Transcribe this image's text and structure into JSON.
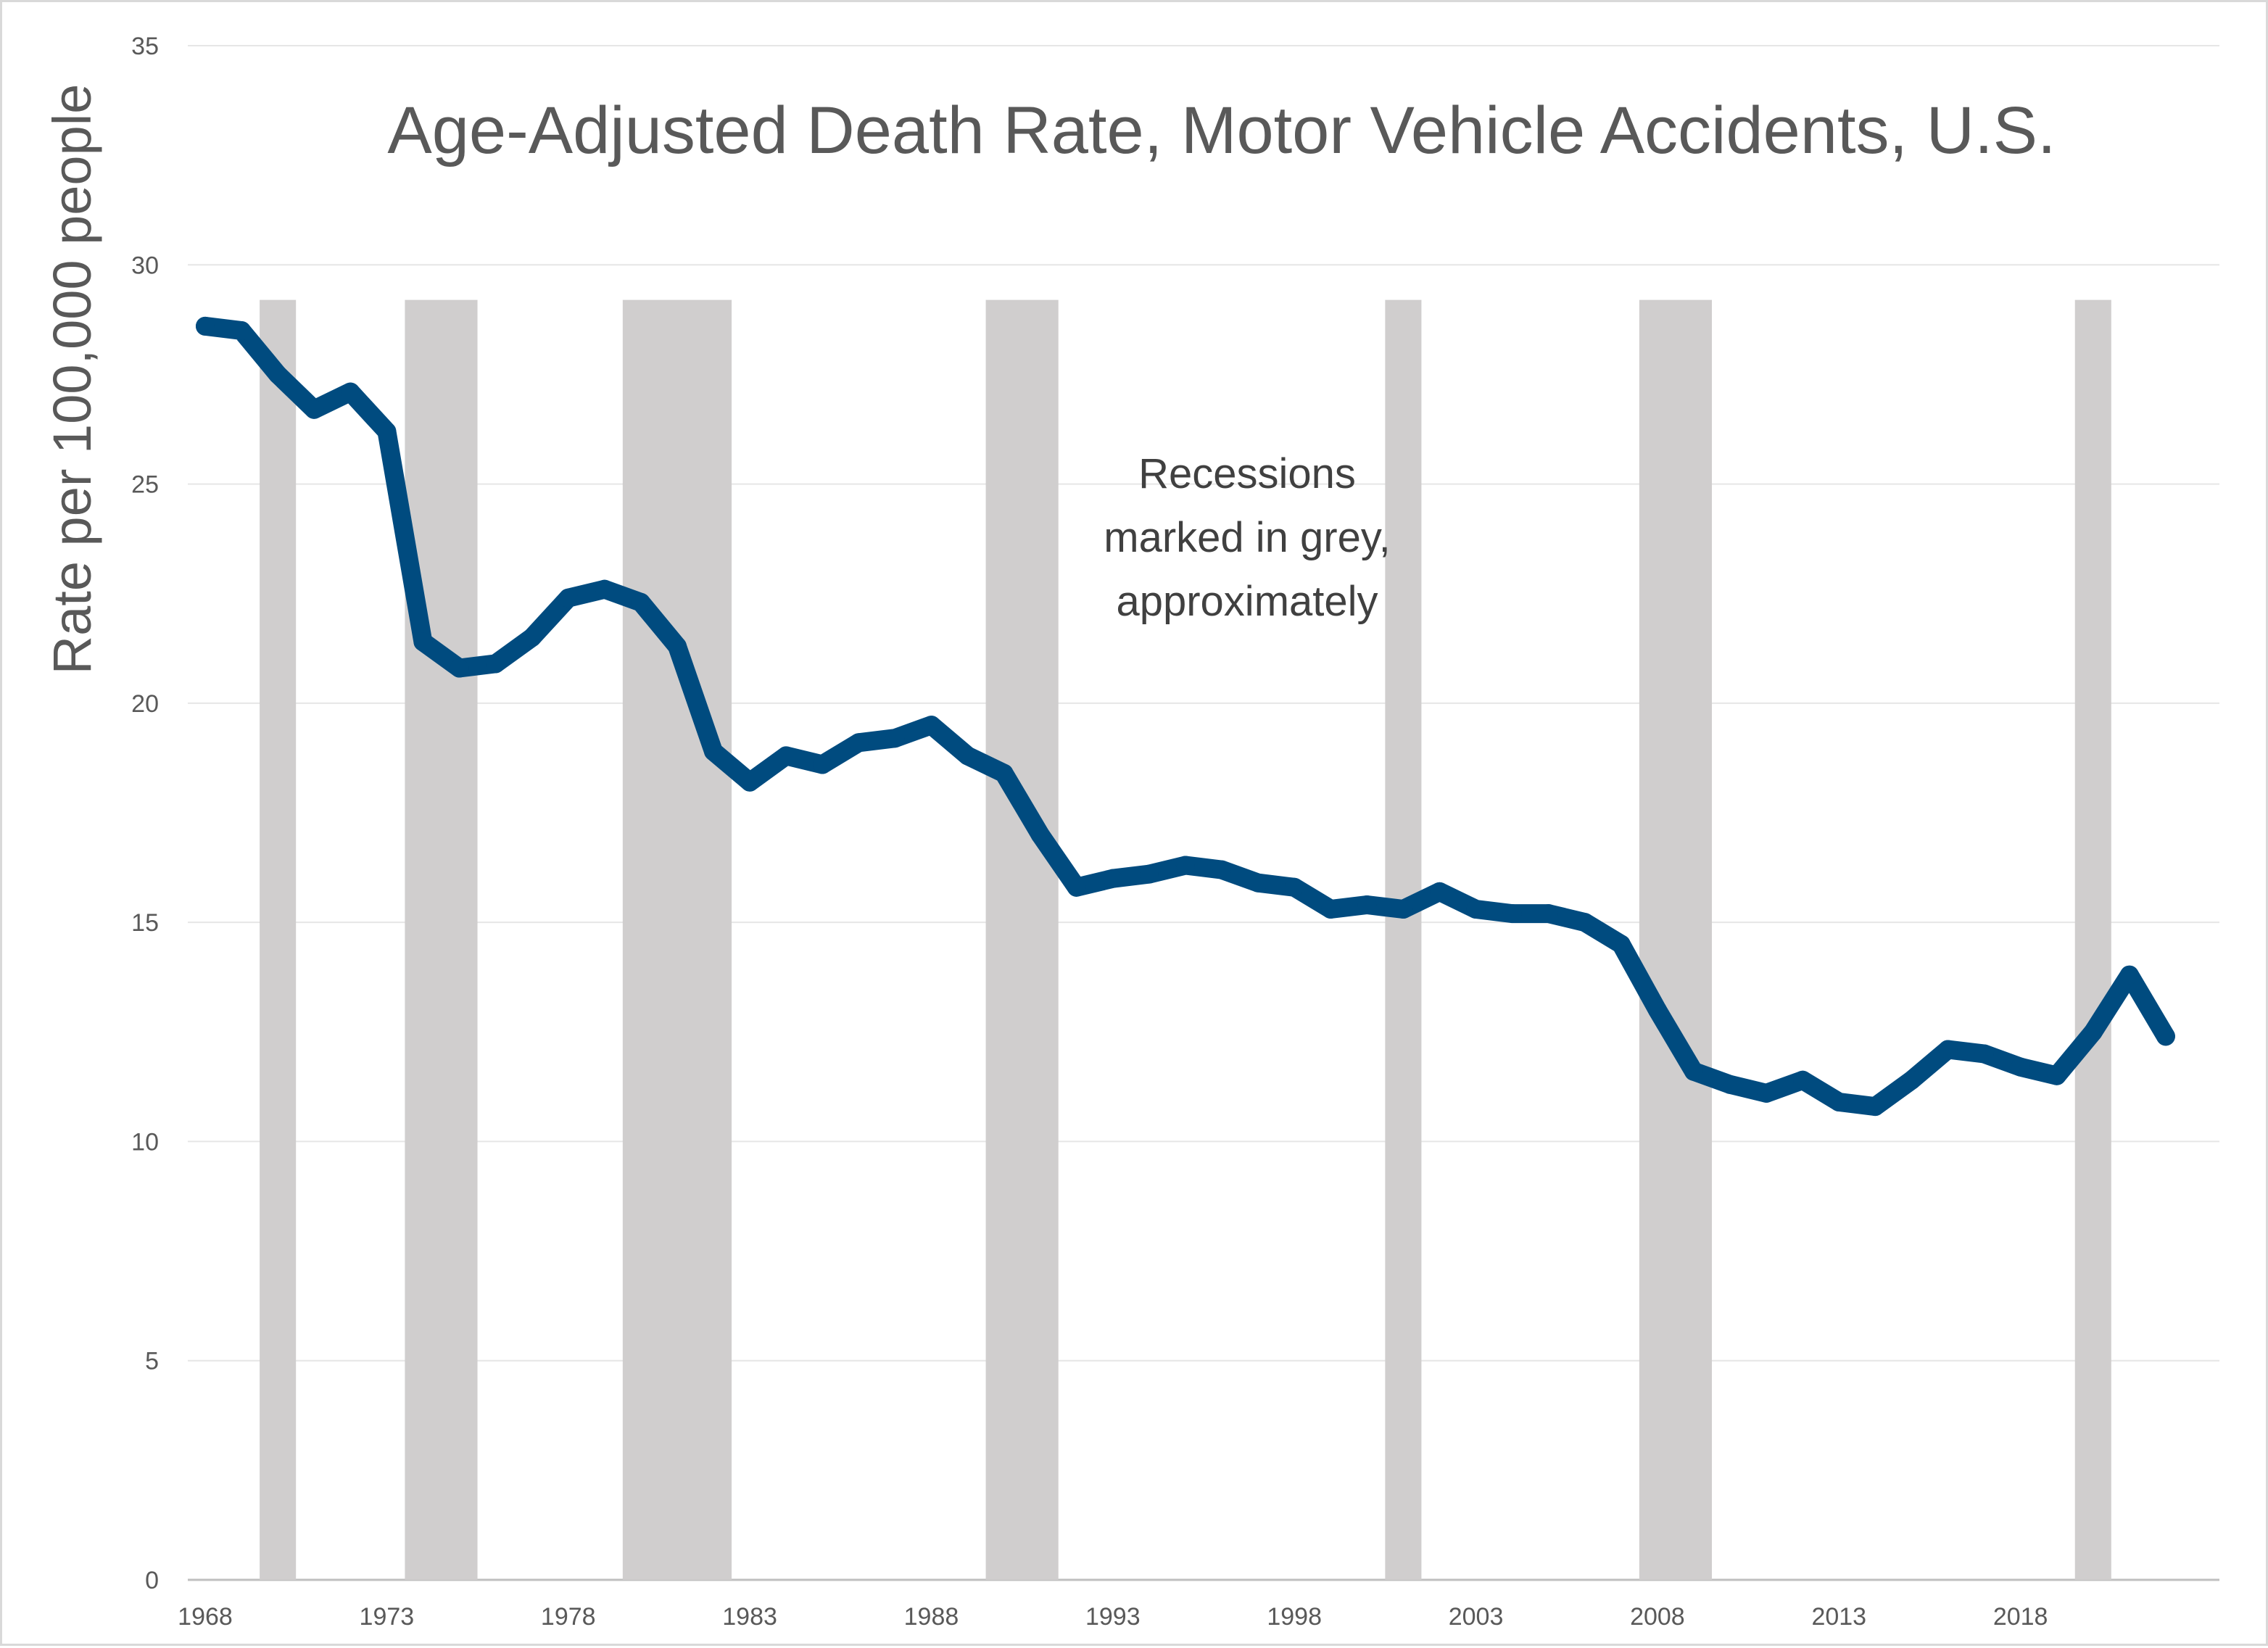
{
  "chart_data": {
    "type": "line",
    "title": "Age-Adjusted Death Rate, Motor Vehicle Accidents, U.S.",
    "xlabel": "",
    "ylabel": "Rate per 100,000 people",
    "annotation": [
      "Recessions",
      "marked in grey,",
      "approximately"
    ],
    "ylim": [
      0,
      35
    ],
    "xlim": [
      1968,
      2023
    ],
    "grid": "horizontal",
    "colors": {
      "line": "#004b7f",
      "recession": "#d0cece",
      "grid": "#e6e6e6",
      "text": "#595959"
    },
    "x_ticks": [
      1968,
      1973,
      1978,
      1983,
      1988,
      1993,
      1998,
      2003,
      2008,
      2013,
      2018
    ],
    "y_ticks": [
      0,
      5,
      10,
      15,
      20,
      25,
      30,
      35
    ],
    "recessions": [
      [
        1969.5,
        1970.5
      ],
      [
        1973.5,
        1975.5
      ],
      [
        1979.5,
        1982.5
      ],
      [
        1989.5,
        1991.5
      ],
      [
        2000.5,
        2001.5
      ],
      [
        2007.5,
        2009.5
      ],
      [
        2019.5,
        2020.5
      ]
    ],
    "recession_top": 29.2,
    "series": [
      {
        "x": [
          1968,
          1969,
          1970,
          1971,
          1972,
          1973,
          1974,
          1975,
          1976,
          1977,
          1978,
          1979,
          1980,
          1981,
          1982,
          1983,
          1984,
          1985,
          1986,
          1987,
          1988,
          1989,
          1990,
          1991,
          1992,
          1993,
          1994,
          1995,
          1996,
          1997,
          1998,
          1999,
          2000,
          2001,
          2002,
          2003,
          2004,
          2005,
          2006,
          2007,
          2008,
          2009,
          2010,
          2011,
          2012,
          2013,
          2014,
          2015,
          2016,
          2017,
          2018,
          2019,
          2020,
          2021,
          2022
        ],
        "values": [
          28.6,
          28.5,
          27.5,
          26.7,
          27.1,
          26.2,
          21.4,
          20.8,
          20.9,
          21.5,
          22.4,
          22.6,
          22.3,
          21.3,
          18.9,
          18.2,
          18.8,
          18.6,
          19.1,
          19.2,
          19.5,
          18.8,
          18.4,
          17.0,
          15.8,
          16.0,
          16.1,
          16.3,
          16.2,
          15.9,
          15.8,
          15.3,
          15.4,
          15.3,
          15.7,
          15.3,
          15.2,
          15.2,
          15.0,
          14.5,
          13.0,
          11.6,
          11.3,
          11.1,
          11.4,
          10.9,
          10.8,
          11.4,
          12.1,
          12.0,
          11.7,
          11.5,
          12.5,
          13.8,
          12.4
        ]
      }
    ]
  }
}
